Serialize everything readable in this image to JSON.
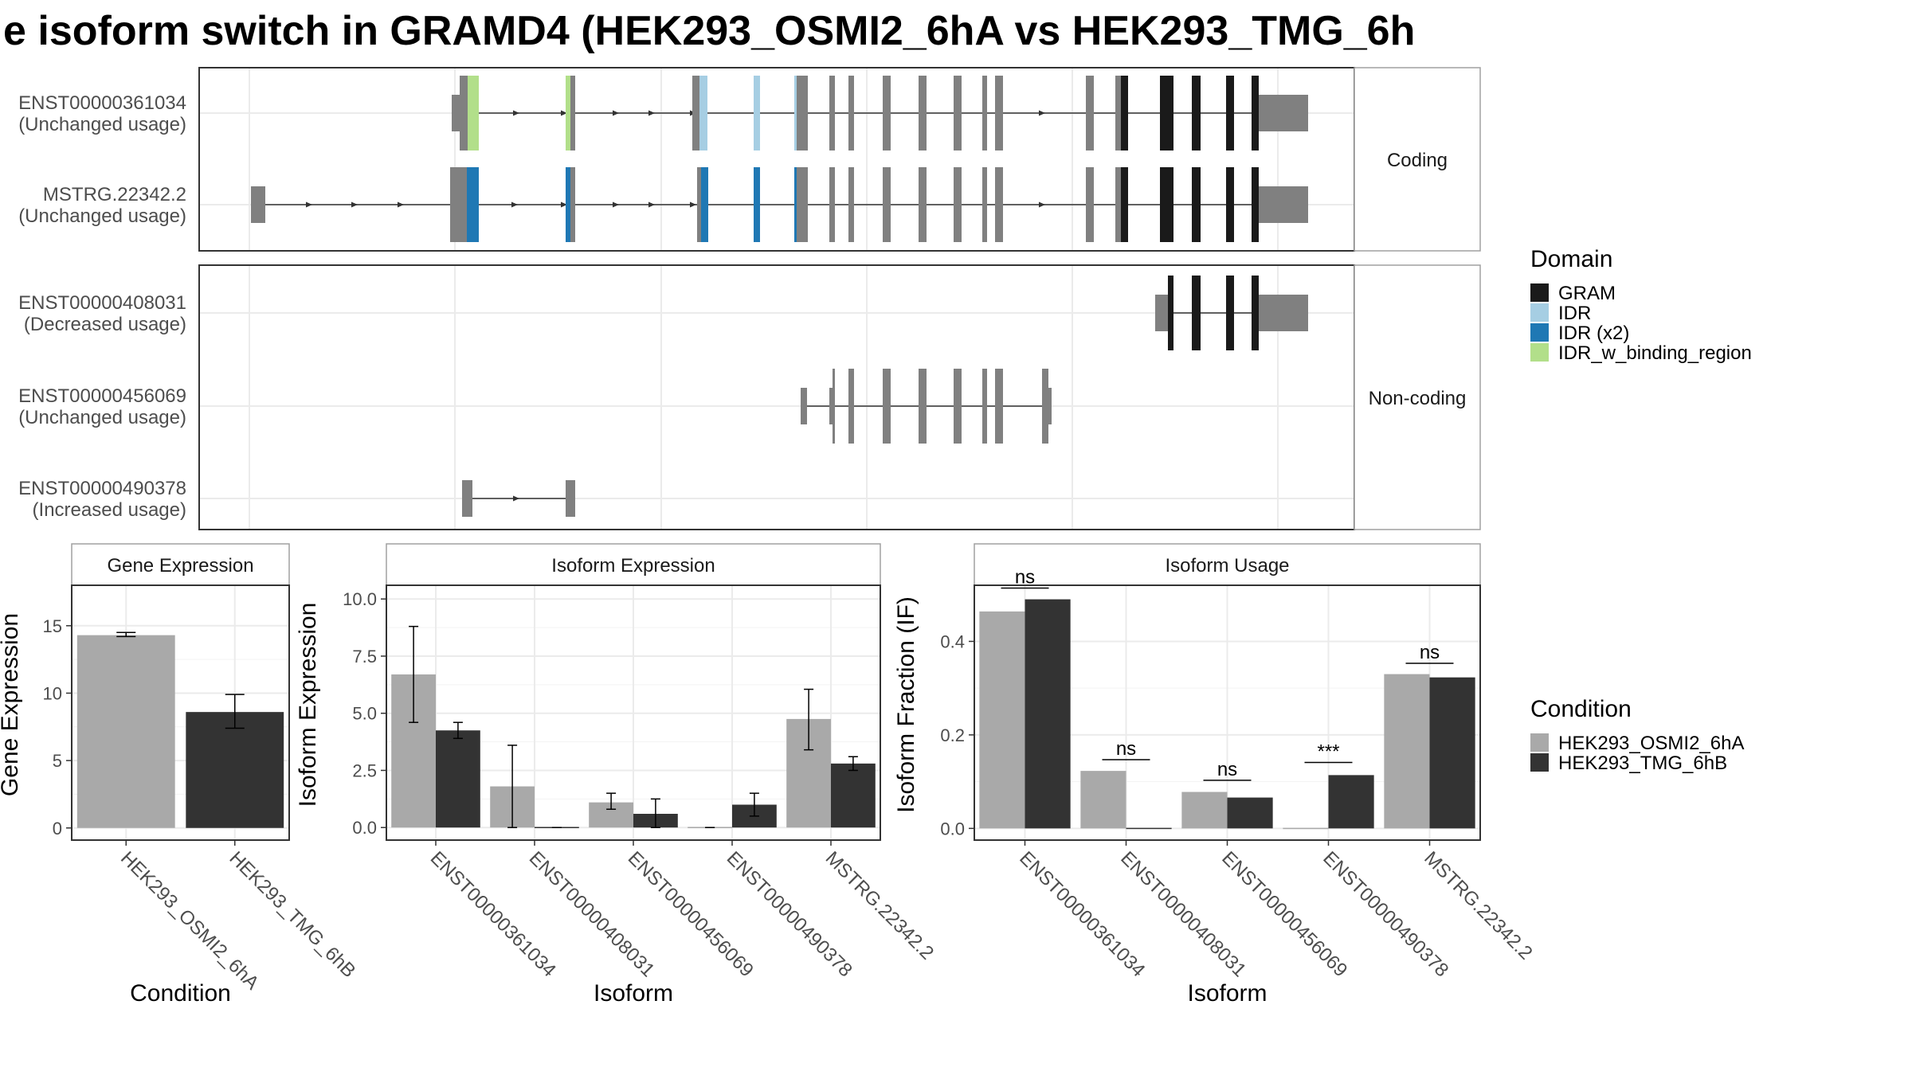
{
  "title": "e isoform switch in GRAMD4 (HEK293_OSMI2_6hA vs HEK293_TMG_6h",
  "colors": {
    "exon": "#808080",
    "GRAM": "#1a1a1a",
    "IDR": "#a6cee3",
    "IDR (x2)": "#1f78b4",
    "IDR_w_binding_region": "#b2df8a",
    "cond1": "#a9a9a9",
    "cond2": "#333333",
    "grid": "#ebebeb",
    "panel_border": "#333333",
    "strip_border": "#a0a0a0"
  },
  "structure": {
    "panels": [
      {
        "label": "Coding",
        "transcripts": [
          {
            "name": "ENST00000361034",
            "usage": "(Unchanged usage)",
            "intron": [
              570,
              1580
            ],
            "arrows": [
              650,
              710,
              775,
              820,
              872,
              1310
            ],
            "exons": [
              {
                "x": [
                  567,
                  577
                ],
                "k": "utr"
              },
              {
                "x": [
                  577,
                  587
                ],
                "k": "cds"
              },
              {
                "x": [
                  587,
                  601
                ],
                "k": "IDR_w_binding_region"
              },
              {
                "x": [
                  710,
                  716
                ],
                "k": "IDR_w_binding_region"
              },
              {
                "x": [
                  716,
                  722
                ],
                "k": "cds"
              },
              {
                "x": [
                  869,
                  878
                ],
                "k": "cds"
              },
              {
                "x": [
                  878,
                  888
                ],
                "k": "IDR"
              },
              {
                "x": [
                  946,
                  954
                ],
                "k": "IDR"
              },
              {
                "x": [
                  997,
                  1000
                ],
                "k": "IDR"
              },
              {
                "x": [
                  1000,
                  1014
                ],
                "k": "cds"
              },
              {
                "x": [
                  1041,
                  1048
                ],
                "k": "cds"
              },
              {
                "x": [
                  1065,
                  1072
                ],
                "k": "cds"
              },
              {
                "x": [
                  1108,
                  1118
                ],
                "k": "cds"
              },
              {
                "x": [
                  1153,
                  1163
                ],
                "k": "cds"
              },
              {
                "x": [
                  1197,
                  1207
                ],
                "k": "cds"
              },
              {
                "x": [
                  1233,
                  1239
                ],
                "k": "cds"
              },
              {
                "x": [
                  1249,
                  1259
                ],
                "k": "cds"
              },
              {
                "x": [
                  1363,
                  1373
                ],
                "k": "cds"
              },
              {
                "x": [
                  1400,
                  1407
                ],
                "k": "cds"
              },
              {
                "x": [
                  1407,
                  1416
                ],
                "k": "GRAM"
              },
              {
                "x": [
                  1456,
                  1473
                ],
                "k": "GRAM"
              },
              {
                "x": [
                  1496,
                  1507
                ],
                "k": "GRAM"
              },
              {
                "x": [
                  1539,
                  1549
                ],
                "k": "GRAM"
              },
              {
                "x": [
                  1571,
                  1580
                ],
                "k": "GRAM"
              },
              {
                "x": [
                  1580,
                  1588
                ],
                "k": "utr"
              },
              {
                "x": [
                  1588,
                  1642
                ],
                "k": "utr"
              }
            ]
          },
          {
            "name": "MSTRG.22342.2",
            "usage": "(Unchanged usage)",
            "intron": [
              318,
              1580
            ],
            "arrows": [
              390,
              447,
              505,
              648,
              710,
              775,
              820,
              872,
              1310
            ],
            "exons": [
              {
                "x": [
                  315,
                  329
                ],
                "k": "utr"
              },
              {
                "x": [
                  329,
                  333
                ],
                "k": "utr"
              },
              {
                "x": [
                  565,
                  586
                ],
                "k": "cds"
              },
              {
                "x": [
                  586,
                  601
                ],
                "k": "IDR (x2)"
              },
              {
                "x": [
                  710,
                  716
                ],
                "k": "IDR (x2)"
              },
              {
                "x": [
                  716,
                  722
                ],
                "k": "cds"
              },
              {
                "x": [
                  875,
                  880
                ],
                "k": "cds"
              },
              {
                "x": [
                  880,
                  889
                ],
                "k": "IDR (x2)"
              },
              {
                "x": [
                  946,
                  954
                ],
                "k": "IDR (x2)"
              },
              {
                "x": [
                  997,
                  1000
                ],
                "k": "IDR (x2)"
              },
              {
                "x": [
                  1000,
                  1014
                ],
                "k": "cds"
              },
              {
                "x": [
                  1041,
                  1048
                ],
                "k": "cds"
              },
              {
                "x": [
                  1065,
                  1072
                ],
                "k": "cds"
              },
              {
                "x": [
                  1108,
                  1118
                ],
                "k": "cds"
              },
              {
                "x": [
                  1153,
                  1163
                ],
                "k": "cds"
              },
              {
                "x": [
                  1197,
                  1207
                ],
                "k": "cds"
              },
              {
                "x": [
                  1233,
                  1239
                ],
                "k": "cds"
              },
              {
                "x": [
                  1249,
                  1259
                ],
                "k": "cds"
              },
              {
                "x": [
                  1363,
                  1373
                ],
                "k": "cds"
              },
              {
                "x": [
                  1400,
                  1407
                ],
                "k": "cds"
              },
              {
                "x": [
                  1407,
                  1416
                ],
                "k": "GRAM"
              },
              {
                "x": [
                  1456,
                  1473
                ],
                "k": "GRAM"
              },
              {
                "x": [
                  1496,
                  1507
                ],
                "k": "GRAM"
              },
              {
                "x": [
                  1539,
                  1549
                ],
                "k": "GRAM"
              },
              {
                "x": [
                  1571,
                  1580
                ],
                "k": "GRAM"
              },
              {
                "x": [
                  1580,
                  1588
                ],
                "k": "utr"
              },
              {
                "x": [
                  1588,
                  1642
                ],
                "k": "utr"
              }
            ]
          }
        ]
      },
      {
        "label": "Non-coding",
        "transcripts": [
          {
            "name": "ENST00000408031",
            "usage": "(Decreased usage)",
            "intron": [
              1460,
              1580
            ],
            "arrows": [],
            "exons": [
              {
                "x": [
                  1450,
                  1466
                ],
                "k": "utr"
              },
              {
                "x": [
                  1466,
                  1473
                ],
                "k": "GRAM"
              },
              {
                "x": [
                  1496,
                  1507
                ],
                "k": "GRAM"
              },
              {
                "x": [
                  1539,
                  1549
                ],
                "k": "GRAM"
              },
              {
                "x": [
                  1571,
                  1580
                ],
                "k": "GRAM"
              },
              {
                "x": [
                  1580,
                  1588
                ],
                "k": "utr"
              },
              {
                "x": [
                  1588,
                  1642
                ],
                "k": "utr"
              }
            ]
          },
          {
            "name": "ENST00000456069",
            "usage": "(Unchanged usage)",
            "intron": [
              1005,
              1320
            ],
            "arrows": [],
            "exons": [
              {
                "x": [
                  1005,
                  1013
                ],
                "k": "utr"
              },
              {
                "x": [
                  1041,
                  1045
                ],
                "k": "utr"
              },
              {
                "x": [
                  1045,
                  1048
                ],
                "k": "cds"
              },
              {
                "x": [
                  1065,
                  1072
                ],
                "k": "cds"
              },
              {
                "x": [
                  1108,
                  1118
                ],
                "k": "cds"
              },
              {
                "x": [
                  1153,
                  1163
                ],
                "k": "cds"
              },
              {
                "x": [
                  1197,
                  1207
                ],
                "k": "cds"
              },
              {
                "x": [
                  1233,
                  1239
                ],
                "k": "cds"
              },
              {
                "x": [
                  1249,
                  1259
                ],
                "k": "cds"
              },
              {
                "x": [
                  1308,
                  1316
                ],
                "k": "cds"
              },
              {
                "x": [
                  1316,
                  1320
                ],
                "k": "utr"
              }
            ]
          },
          {
            "name": "ENST00000490378",
            "usage": "(Increased usage)",
            "intron": [
              590,
              720
            ],
            "arrows": [
              650
            ],
            "exons": [
              {
                "x": [
                  580,
                  593
                ],
                "k": "utr"
              },
              {
                "x": [
                  710,
                  722
                ],
                "k": "utr"
              }
            ]
          }
        ]
      }
    ]
  },
  "legends": {
    "domain_title": "Domain",
    "domain_items": [
      "GRAM",
      "IDR",
      "IDR (x2)",
      "IDR_w_binding_region"
    ],
    "condition_title": "Condition",
    "condition_items": [
      "HEK293_OSMI2_6hA",
      "HEK293_TMG_6hB"
    ]
  },
  "chart_data": [
    {
      "type": "bar",
      "title": "Gene Expression",
      "xlabel": "Condition",
      "ylabel": "Gene Expression",
      "categories": [
        "HEK293_OSMI2_6hA",
        "HEK293_TMG_6hB"
      ],
      "values": [
        14.3,
        8.6
      ],
      "errors": [
        [
          14.2,
          14.5
        ],
        [
          7.4,
          9.9
        ]
      ],
      "ylim": [
        -0.9,
        18.0
      ],
      "yticks": [
        0,
        5,
        10,
        15
      ],
      "ytick_labels": [
        "0",
        "5",
        "10",
        "15"
      ]
    },
    {
      "type": "bar",
      "title": "Isoform Expression",
      "xlabel": "Isoform",
      "ylabel": "Isoform Expression",
      "categories": [
        "ENST00000361034",
        "ENST00000408031",
        "ENST00000456069",
        "ENST00000490378",
        "MSTRG.22342.2"
      ],
      "series": [
        {
          "name": "HEK293_OSMI2_6hA",
          "values": [
            6.7,
            1.8,
            1.1,
            0.0,
            4.75
          ],
          "errors": [
            [
              4.6,
              8.8
            ],
            [
              0.0,
              3.6
            ],
            [
              0.8,
              1.5
            ],
            [
              0.0,
              0.0
            ],
            [
              3.4,
              6.05
            ]
          ]
        },
        {
          "name": "HEK293_TMG_6hB",
          "values": [
            4.25,
            0.0,
            0.6,
            1.0,
            2.8
          ],
          "errors": [
            [
              3.9,
              4.6
            ],
            [
              0.0,
              0.0
            ],
            [
              0.0,
              1.25
            ],
            [
              0.5,
              1.5
            ],
            [
              2.5,
              3.1
            ]
          ]
        }
      ],
      "ylim": [
        -0.55,
        10.6
      ],
      "yticks": [
        0,
        2.5,
        5,
        7.5,
        10
      ],
      "ytick_labels": [
        "0.0",
        "2.5",
        "5.0",
        "7.5",
        "10.0"
      ]
    },
    {
      "type": "bar",
      "title": "Isoform Usage",
      "xlabel": "Isoform",
      "ylabel": "Isoform Fraction (IF)",
      "categories": [
        "ENST00000361034",
        "ENST00000408031",
        "ENST00000456069",
        "ENST00000490378",
        "MSTRG.22342.2"
      ],
      "series": [
        {
          "name": "HEK293_OSMI2_6hA",
          "values": [
            0.464,
            0.123,
            0.078,
            0.0,
            0.33
          ]
        },
        {
          "name": "HEK293_TMG_6hB",
          "values": [
            0.49,
            0.0,
            0.066,
            0.114,
            0.323
          ]
        }
      ],
      "significance": [
        "ns",
        "ns",
        "ns",
        "***",
        "ns"
      ],
      "sig_level": [
        0.514,
        0.147,
        0.103,
        0.141,
        0.353
      ],
      "ylim": [
        -0.025,
        0.52
      ],
      "yticks": [
        0,
        0.2,
        0.4
      ],
      "ytick_labels": [
        "0.0",
        "0.2",
        "0.4"
      ]
    }
  ]
}
